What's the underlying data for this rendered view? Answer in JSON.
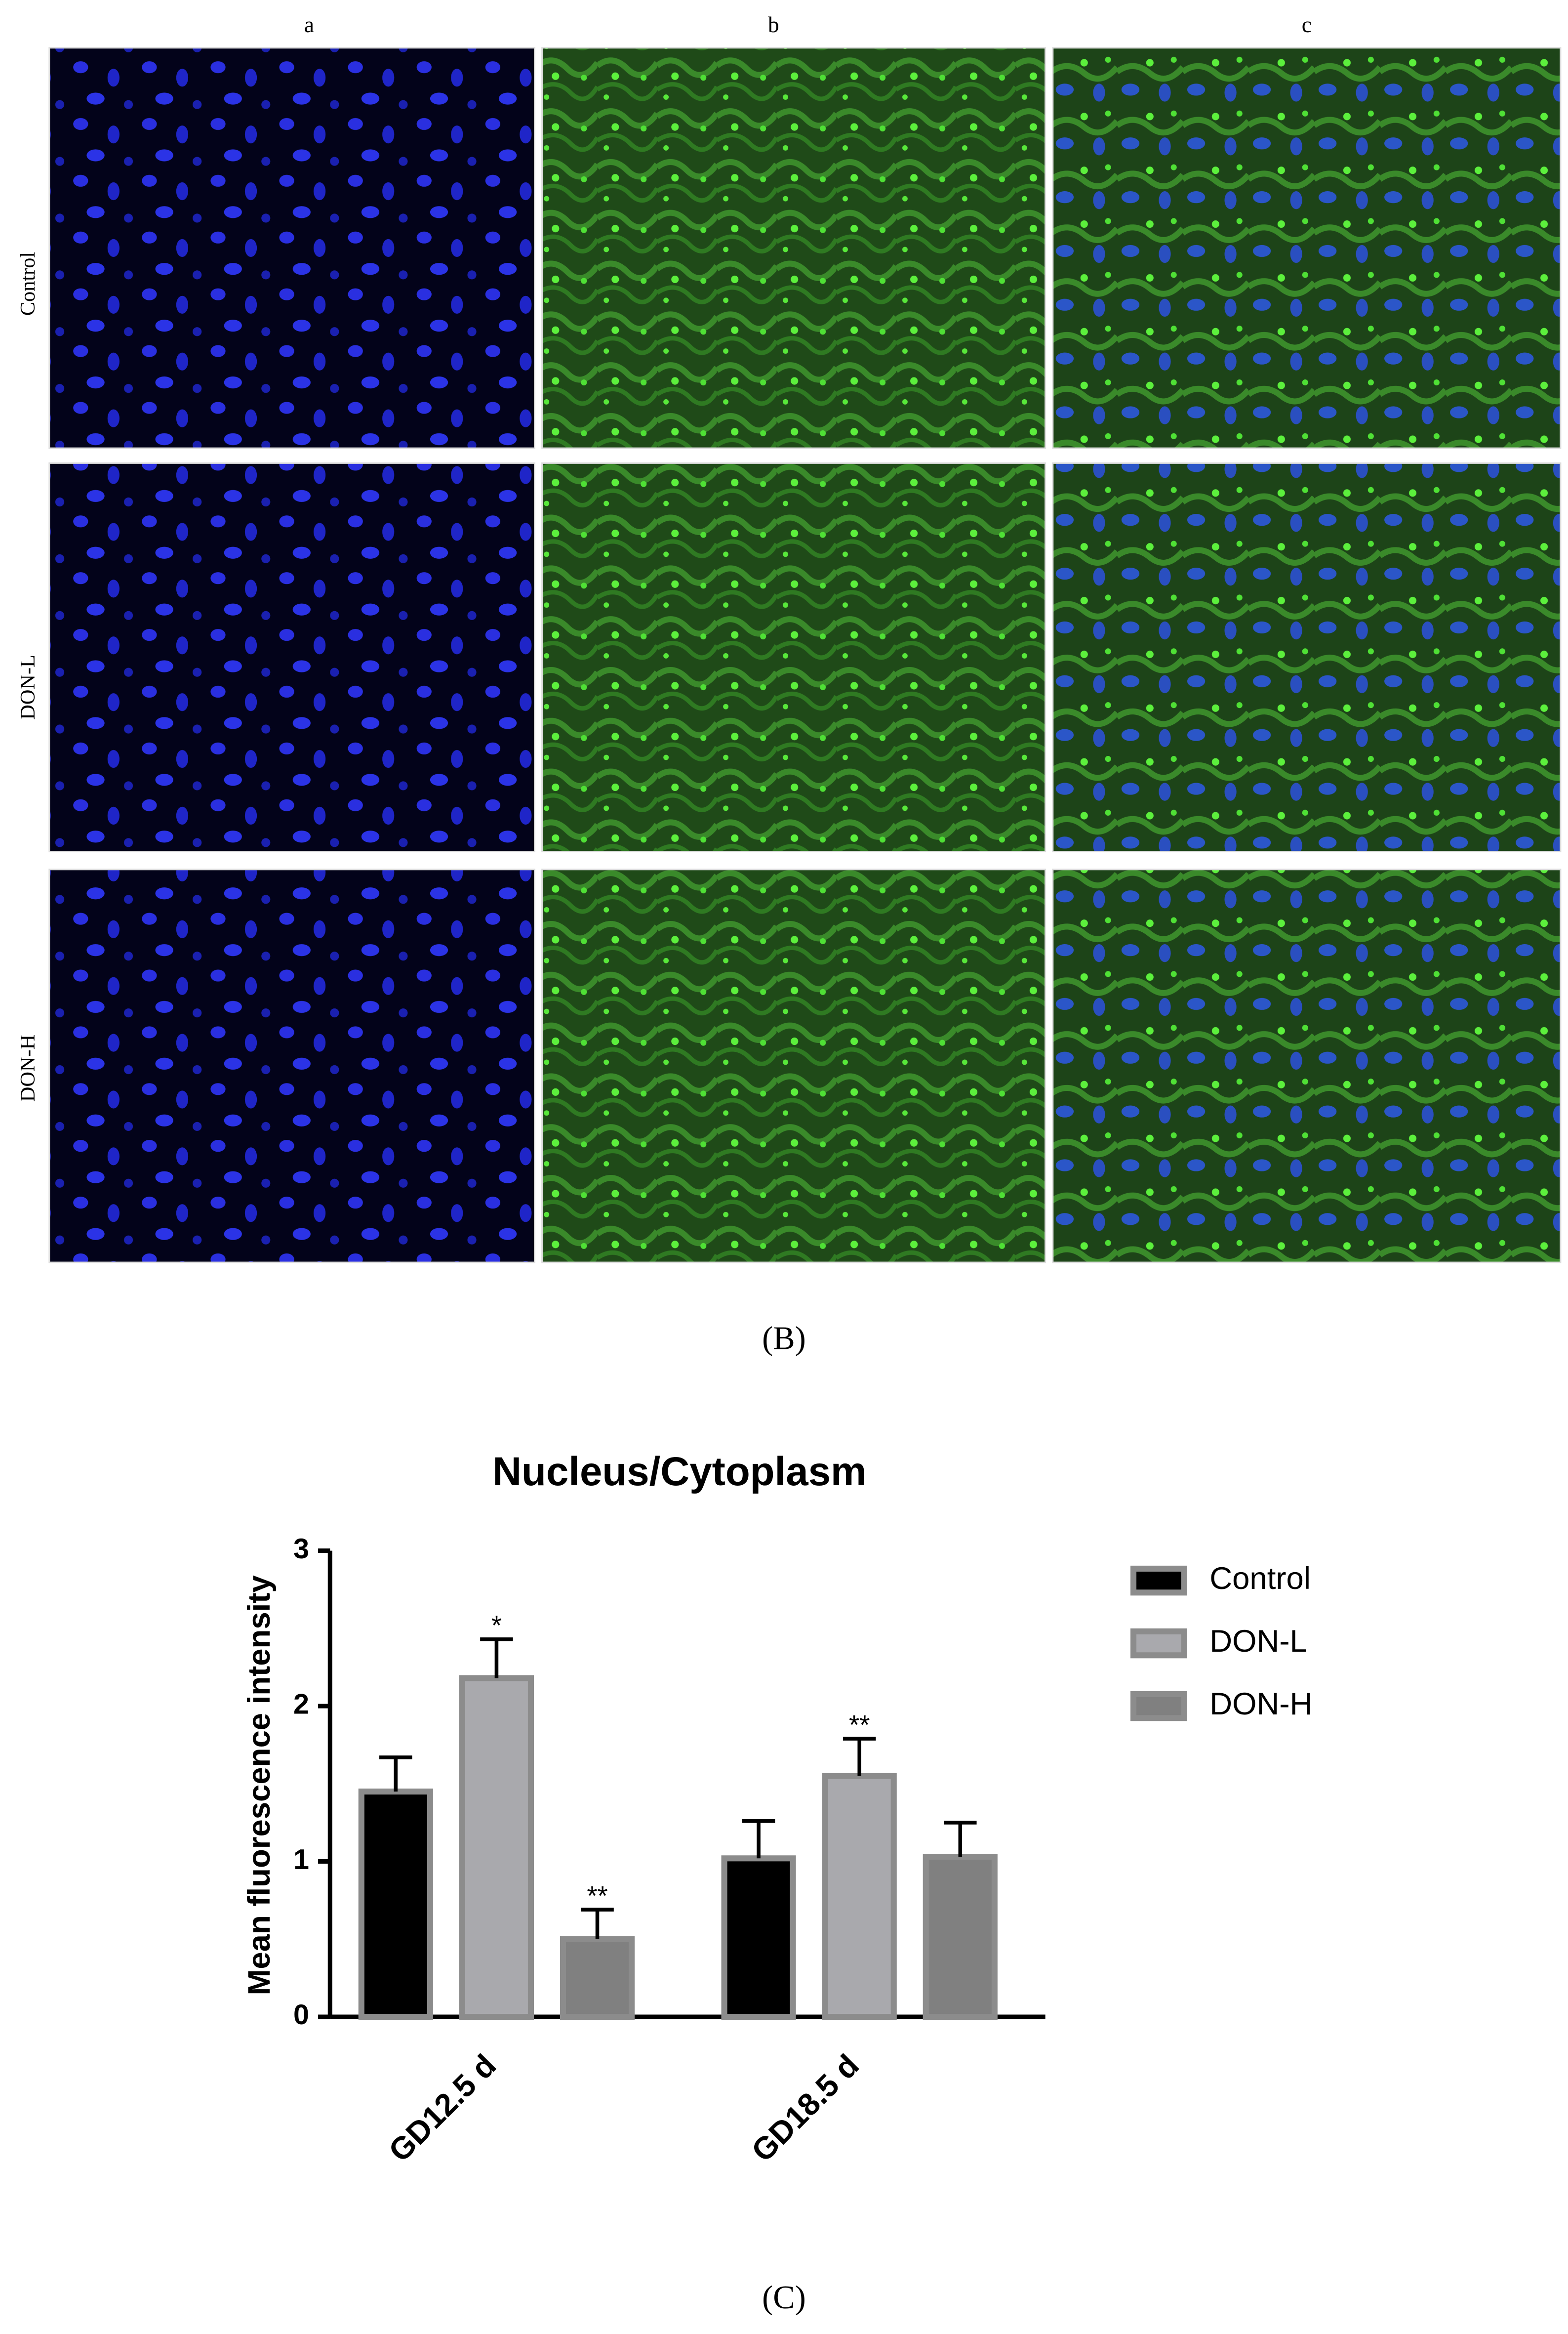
{
  "panel_b": {
    "label": "(B)",
    "columns": [
      "a",
      "b",
      "c"
    ],
    "rows": [
      "Control",
      "DON-L",
      "DON-H"
    ]
  },
  "panel_c": {
    "label": "(C)"
  },
  "chart_data": {
    "type": "bar",
    "title": "Nucleus/Cytoplasm",
    "ylabel": "Mean fluorescence intensity",
    "categories": [
      "GD12.5 d",
      "GD18.5 d"
    ],
    "series": [
      {
        "name": "Control",
        "color": "#000000",
        "values": [
          1.45,
          1.02
        ],
        "errors": [
          0.22,
          0.24
        ],
        "significance": [
          null,
          null
        ]
      },
      {
        "name": "DON-L",
        "color": "#a9a9ad",
        "values": [
          2.18,
          1.55
        ],
        "errors": [
          0.25,
          0.24
        ],
        "significance": [
          "*",
          "**"
        ]
      },
      {
        "name": "DON-H",
        "color": "#808080",
        "values": [
          0.5,
          1.03
        ],
        "errors": [
          0.19,
          0.22
        ],
        "significance": [
          "**",
          null
        ]
      }
    ],
    "ylim": [
      0,
      3
    ],
    "yticks": [
      0,
      1,
      2,
      3
    ],
    "legend": "right",
    "grid": false
  }
}
